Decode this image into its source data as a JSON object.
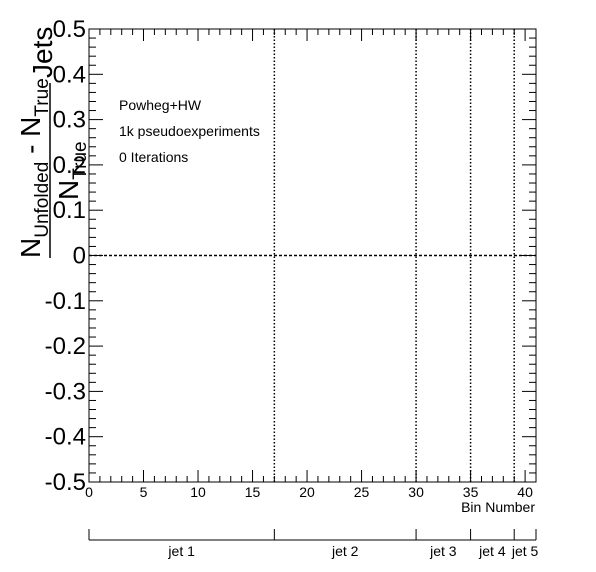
{
  "chart_data": {
    "type": "line",
    "title": "",
    "xlabel": "Bin Number",
    "ylabel": {
      "num_main": "N",
      "num_sub1": "Unfolded",
      "num_minus": " - N",
      "num_sub2": "True",
      "den_main": "N",
      "den_sub": "True",
      "suffix": "Jets"
    },
    "xlim": [
      0,
      41
    ],
    "ylim": [
      -0.5,
      0.5
    ],
    "x_ticks": [
      0,
      5,
      10,
      15,
      20,
      25,
      30,
      35,
      40
    ],
    "x_tick_labels": [
      "0",
      "5",
      "10",
      "15",
      "20",
      "25",
      "30",
      "35",
      "40"
    ],
    "y_ticks": [
      -0.5,
      -0.4,
      -0.3,
      -0.2,
      -0.1,
      0,
      0.1,
      0.2,
      0.3,
      0.4,
      0.5
    ],
    "y_tick_labels": [
      "-0.5",
      "-0.4",
      "-0.3",
      "-0.2",
      "-0.1",
      "0",
      "0.1",
      "0.2",
      "0.3",
      "0.4",
      "0.5"
    ],
    "grid": false,
    "annotations": [
      "Powheg+HW",
      "1k pseudoexperiments",
      "0 Iterations"
    ],
    "series": [
      {
        "x": [
          0,
          41
        ],
        "y": [
          0,
          0
        ]
      }
    ],
    "jet_boundaries": [
      17,
      30,
      35,
      39
    ],
    "jet_groups": [
      {
        "label": "jet 1",
        "x_range": [
          0,
          17
        ]
      },
      {
        "label": "jet 2",
        "x_range": [
          17,
          30
        ]
      },
      {
        "label": "jet 3",
        "x_range": [
          30,
          35
        ]
      },
      {
        "label": "jet 4",
        "x_range": [
          35,
          39
        ]
      },
      {
        "label": "jet 5",
        "x_range": [
          39,
          41
        ]
      }
    ]
  }
}
